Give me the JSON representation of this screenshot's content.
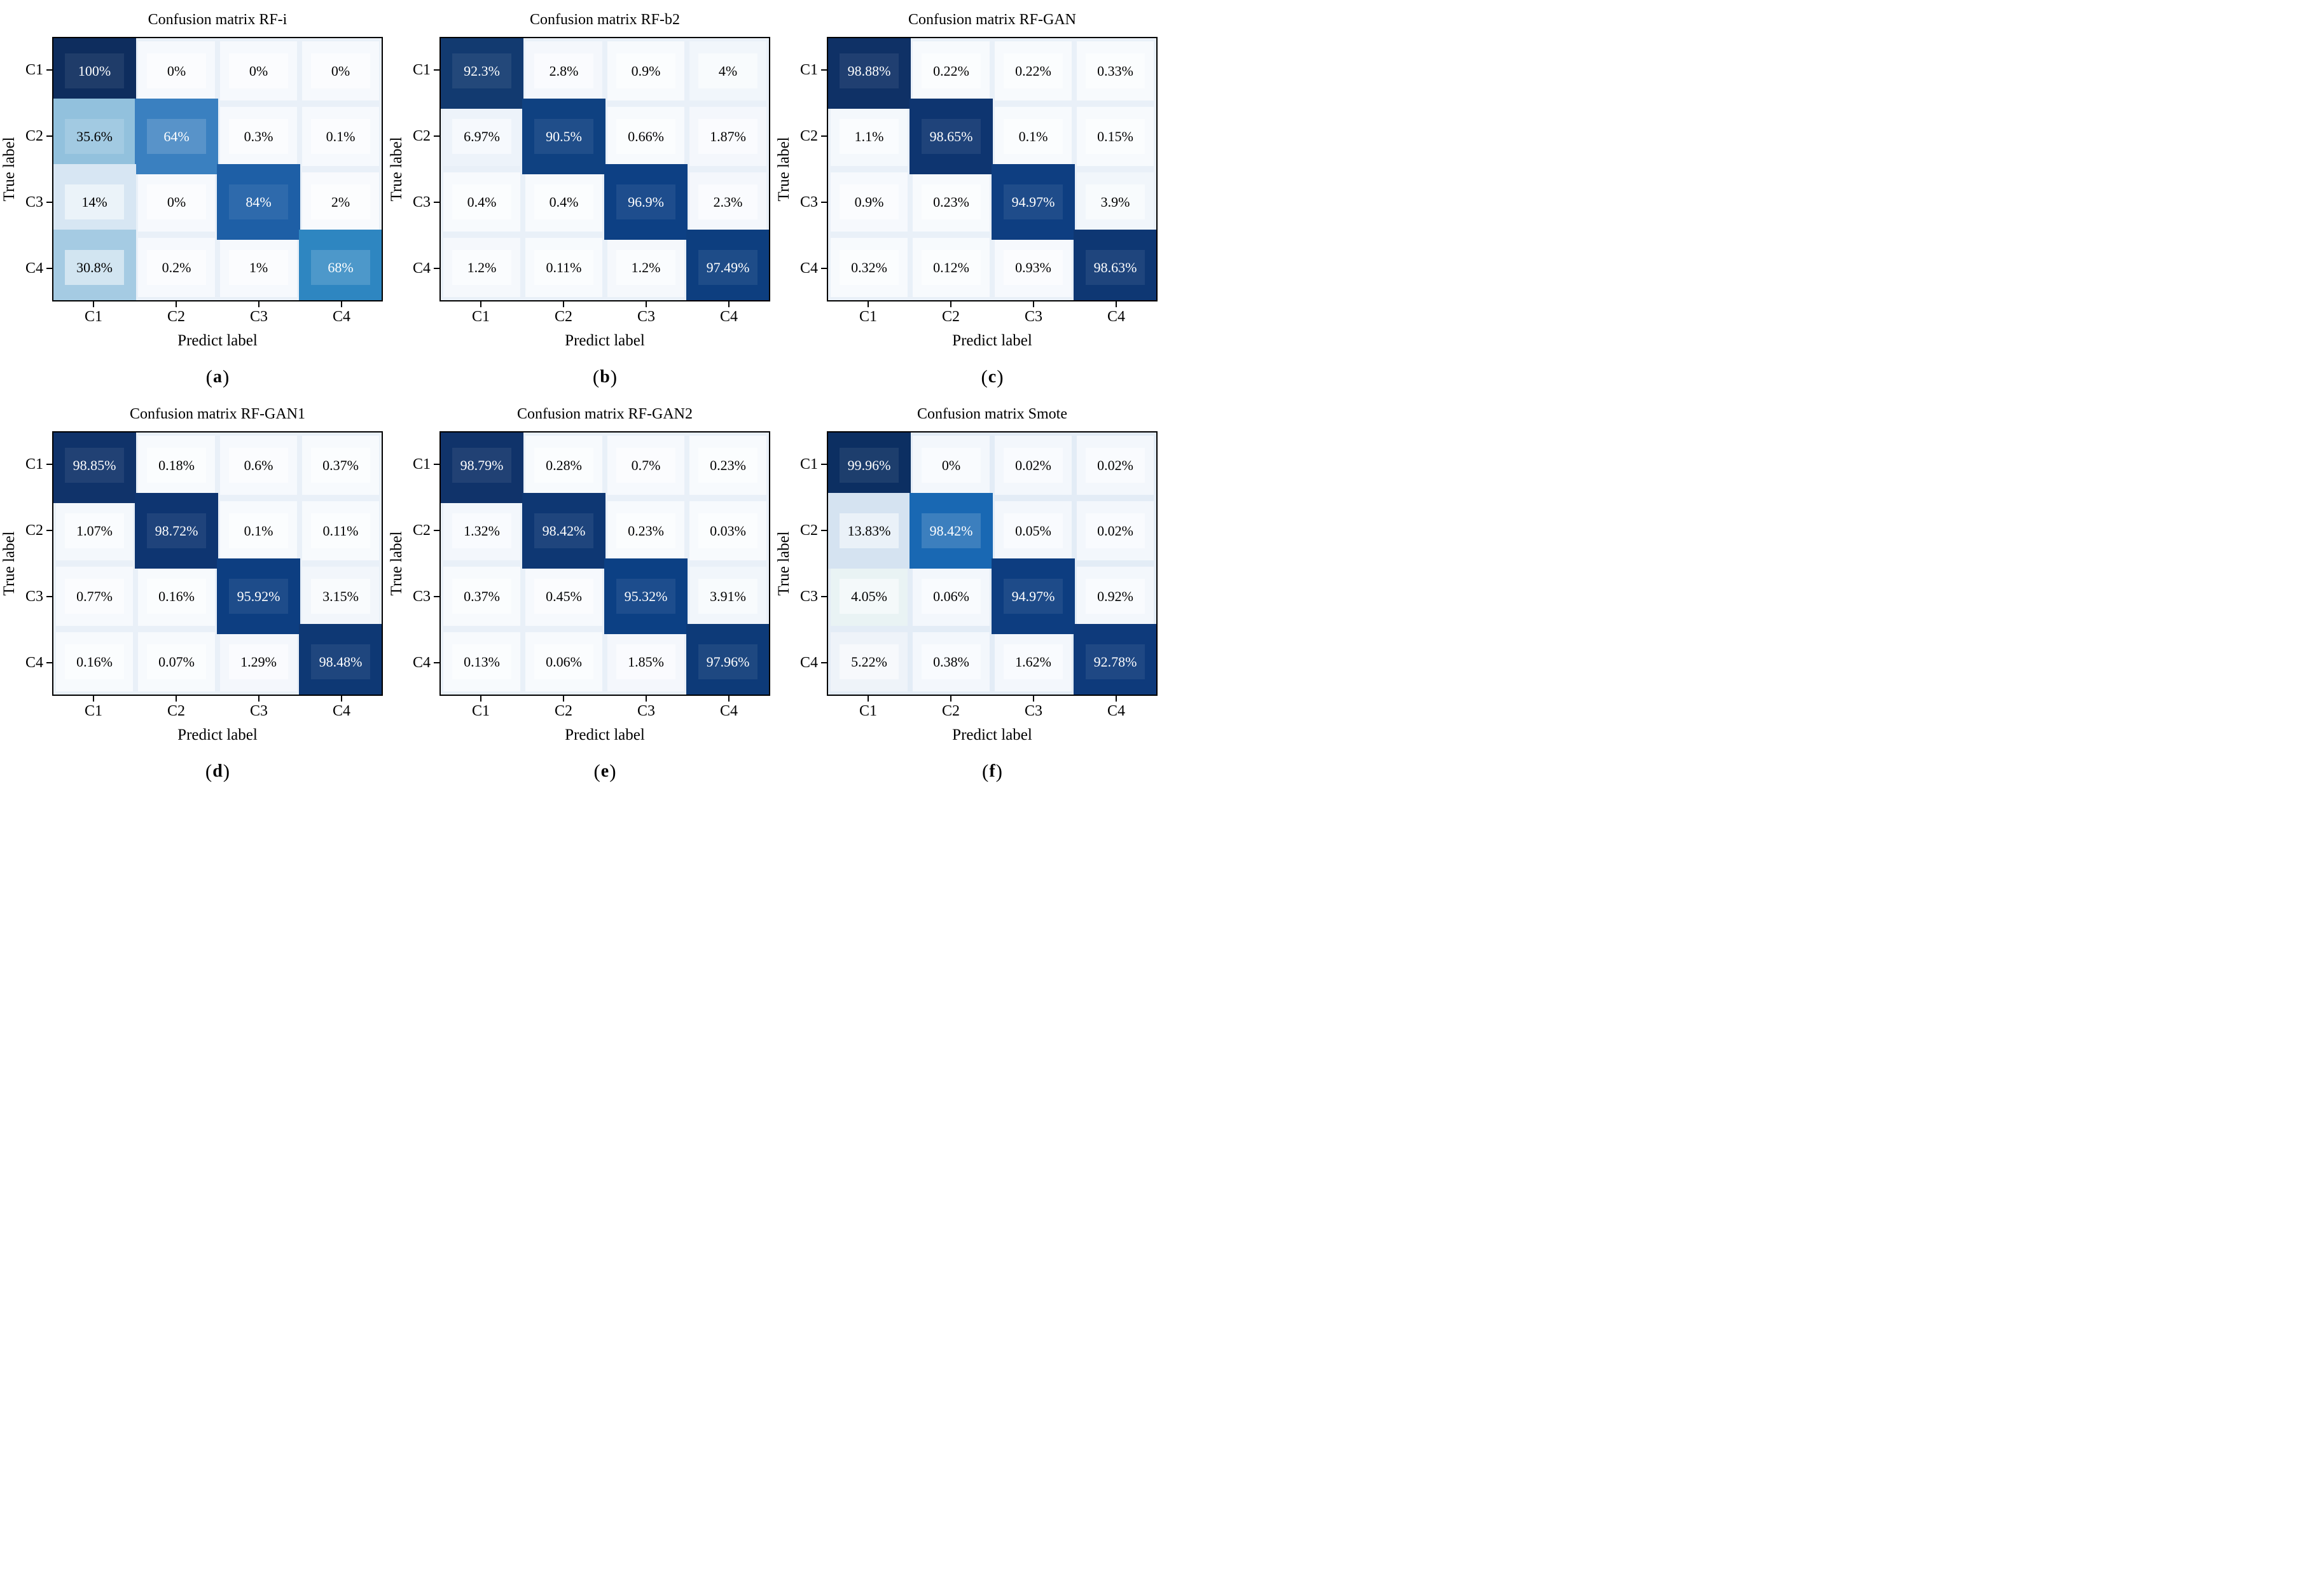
{
  "figure": {
    "ylabel": "True label",
    "xlabel": "Predict label",
    "classes": [
      "C1",
      "C2",
      "C3",
      "C4"
    ],
    "caption_open": "(",
    "caption_close": ")"
  },
  "style": {
    "page_bg": "#ffffff",
    "plot_border": "#000000",
    "default_plot_bg": "#e9f0f8",
    "dark_text": "#000000",
    "light_text": "#ffffff",
    "accent_navy": "#0e3570"
  },
  "panels": [
    {
      "caption": "a",
      "title": "Confusion matrix RF-i",
      "cells": [
        [
          "100%",
          "0%",
          "0%",
          "0%"
        ],
        [
          "35.6%",
          "64%",
          "0.3%",
          "0.1%"
        ],
        [
          "14%",
          "0%",
          "84%",
          "2%"
        ],
        [
          "30.8%",
          "0.2%",
          "1%",
          "68%"
        ]
      ],
      "colors": [
        [
          "#0e2d5e",
          "#f6f9fd",
          "#f6f9fd",
          "#f6f9fd"
        ],
        [
          "#92c1dd",
          "#3a80c0",
          "#f6f9fd",
          "#f6f9fd"
        ],
        [
          "#d7e6f3",
          "#f6f9fd",
          "#1e5fa6",
          "#f8fafd"
        ],
        [
          "#a5cbe3",
          "#f6f9fd",
          "#f6f9fd",
          "#2e86c1"
        ]
      ]
    },
    {
      "caption": "b",
      "title": "Confusion matrix RF-b2",
      "cells": [
        [
          "92.3%",
          "2.8%",
          "0.9%",
          "4%"
        ],
        [
          "6.97%",
          "90.5%",
          "0.66%",
          "1.87%"
        ],
        [
          "0.4%",
          "0.4%",
          "96.9%",
          "2.3%"
        ],
        [
          "1.2%",
          "0.11%",
          "1.2%",
          "97.49%"
        ]
      ],
      "colors": [
        [
          "#123a70",
          "#f4f7fc",
          "#f7fafd",
          "#f1f6fb"
        ],
        [
          "#edf3fa",
          "#0f4181",
          "#f7fafd",
          "#f4f7fc"
        ],
        [
          "#f7fafd",
          "#f7fafd",
          "#0d4084",
          "#f4f7fc"
        ],
        [
          "#f5f8fc",
          "#f7fafd",
          "#f5f8fc",
          "#0d3e7f"
        ]
      ]
    },
    {
      "caption": "c",
      "title": "Confusion matrix RF-GAN",
      "cells": [
        [
          "98.88%",
          "0.22%",
          "0.22%",
          "0.33%"
        ],
        [
          "1.1%",
          "98.65%",
          "0.1%",
          "0.15%"
        ],
        [
          "0.9%",
          "0.23%",
          "94.97%",
          "3.9%"
        ],
        [
          "0.32%",
          "0.12%",
          "0.93%",
          "98.63%"
        ]
      ],
      "colors": [
        [
          "#0f3166",
          "#f7fafd",
          "#f7fafd",
          "#f7fafd"
        ],
        [
          "#f4f8fc",
          "#0e3570",
          "#f7fafd",
          "#f7fafd"
        ],
        [
          "#f6f9fd",
          "#f7fafd",
          "#0e3e81",
          "#f1f6fb"
        ],
        [
          "#f7fafd",
          "#f7fafd",
          "#f6f9fd",
          "#0e3773"
        ]
      ]
    },
    {
      "caption": "d",
      "title": "Confusion matrix RF-GAN1",
      "cells": [
        [
          "98.85%",
          "0.18%",
          "0.6%",
          "0.37%"
        ],
        [
          "1.07%",
          "98.72%",
          "0.1%",
          "0.11%"
        ],
        [
          "0.77%",
          "0.16%",
          "95.92%",
          "3.15%"
        ],
        [
          "0.16%",
          "0.07%",
          "1.29%",
          "98.48%"
        ]
      ],
      "colors": [
        [
          "#10336a",
          "#f7fafd",
          "#f6f9fd",
          "#f7fafd"
        ],
        [
          "#f4f8fc",
          "#0e3571",
          "#f7fafd",
          "#f7fafd"
        ],
        [
          "#f6f9fd",
          "#f7fafd",
          "#0d3e81",
          "#f2f6fb"
        ],
        [
          "#f7fafd",
          "#f7fafd",
          "#f4f7fc",
          "#0e3874"
        ]
      ]
    },
    {
      "caption": "e",
      "title": "Confusion matrix RF-GAN2",
      "cells": [
        [
          "98.79%",
          "0.28%",
          "0.7%",
          "0.23%"
        ],
        [
          "1.32%",
          "98.42%",
          "0.23%",
          "0.03%"
        ],
        [
          "0.37%",
          "0.45%",
          "95.32%",
          "3.91%"
        ],
        [
          "0.13%",
          "0.06%",
          "1.85%",
          "97.96%"
        ]
      ],
      "colors": [
        [
          "#10336a",
          "#f7fafd",
          "#f6f9fd",
          "#f7fafd"
        ],
        [
          "#f3f7fc",
          "#0e3773",
          "#f7fafd",
          "#f7fafd"
        ],
        [
          "#f7fafd",
          "#f6f9fd",
          "#0c4084",
          "#f1f6fb"
        ],
        [
          "#f7fafd",
          "#f7fafd",
          "#f4f7fc",
          "#0d3a78"
        ]
      ]
    },
    {
      "caption": "f",
      "title": "Confusion matrix Smote",
      "plot_bg": "#e3ecf6",
      "cells": [
        [
          "99.96%",
          "0%",
          "0.02%",
          "0.02%"
        ],
        [
          "13.83%",
          "98.42%",
          "0.05%",
          "0.02%"
        ],
        [
          "4.05%",
          "0.06%",
          "94.97%",
          "0.92%"
        ],
        [
          "5.22%",
          "0.38%",
          "1.62%",
          "92.78%"
        ]
      ],
      "colors": [
        [
          "#0c2f62",
          "#f3f7fc",
          "#f3f7fc",
          "#f3f7fc"
        ],
        [
          "#d5e3f1",
          "#1968b3",
          "#f3f7fc",
          "#f3f7fc"
        ],
        [
          "#e9f3f4",
          "#f3f7fc",
          "#0d3d80",
          "#f3f7fc"
        ],
        [
          "#eef3f9",
          "#f3f7fc",
          "#f3f7fc",
          "#0e3a7b"
        ]
      ]
    }
  ],
  "chart_data": [
    {
      "type": "heatmap",
      "title": "Confusion matrix RF-i",
      "xlabel": "Predict label",
      "ylabel": "True label",
      "x_categories": [
        "C1",
        "C2",
        "C3",
        "C4"
      ],
      "y_categories": [
        "C1",
        "C2",
        "C3",
        "C4"
      ],
      "unit": "%",
      "colormap": "Blues",
      "values": [
        [
          100,
          0,
          0,
          0
        ],
        [
          35.6,
          64,
          0.3,
          0.1
        ],
        [
          14,
          0,
          84,
          2
        ],
        [
          30.8,
          0.2,
          1,
          68
        ]
      ]
    },
    {
      "type": "heatmap",
      "title": "Confusion matrix RF-b2",
      "xlabel": "Predict label",
      "ylabel": "True label",
      "x_categories": [
        "C1",
        "C2",
        "C3",
        "C4"
      ],
      "y_categories": [
        "C1",
        "C2",
        "C3",
        "C4"
      ],
      "unit": "%",
      "colormap": "Blues",
      "values": [
        [
          92.3,
          2.8,
          0.9,
          4
        ],
        [
          6.97,
          90.5,
          0.66,
          1.87
        ],
        [
          0.4,
          0.4,
          96.9,
          2.3
        ],
        [
          1.2,
          0.11,
          1.2,
          97.49
        ]
      ]
    },
    {
      "type": "heatmap",
      "title": "Confusion matrix RF-GAN",
      "xlabel": "Predict label",
      "ylabel": "True label",
      "x_categories": [
        "C1",
        "C2",
        "C3",
        "C4"
      ],
      "y_categories": [
        "C1",
        "C2",
        "C3",
        "C4"
      ],
      "unit": "%",
      "colormap": "Blues",
      "values": [
        [
          98.88,
          0.22,
          0.22,
          0.33
        ],
        [
          1.1,
          98.65,
          0.1,
          0.15
        ],
        [
          0.9,
          0.23,
          94.97,
          3.9
        ],
        [
          0.32,
          0.12,
          0.93,
          98.63
        ]
      ]
    },
    {
      "type": "heatmap",
      "title": "Confusion matrix RF-GAN1",
      "xlabel": "Predict label",
      "ylabel": "True label",
      "x_categories": [
        "C1",
        "C2",
        "C3",
        "C4"
      ],
      "y_categories": [
        "C1",
        "C2",
        "C3",
        "C4"
      ],
      "unit": "%",
      "colormap": "Blues",
      "values": [
        [
          98.85,
          0.18,
          0.6,
          0.37
        ],
        [
          1.07,
          98.72,
          0.1,
          0.11
        ],
        [
          0.77,
          0.16,
          95.92,
          3.15
        ],
        [
          0.16,
          0.07,
          1.29,
          98.48
        ]
      ]
    },
    {
      "type": "heatmap",
      "title": "Confusion matrix RF-GAN2",
      "xlabel": "Predict label",
      "ylabel": "True label",
      "x_categories": [
        "C1",
        "C2",
        "C3",
        "C4"
      ],
      "y_categories": [
        "C1",
        "C2",
        "C3",
        "C4"
      ],
      "unit": "%",
      "colormap": "Blues",
      "values": [
        [
          98.79,
          0.28,
          0.7,
          0.23
        ],
        [
          1.32,
          98.42,
          0.23,
          0.03
        ],
        [
          0.37,
          0.45,
          95.32,
          3.91
        ],
        [
          0.13,
          0.06,
          1.85,
          97.96
        ]
      ]
    },
    {
      "type": "heatmap",
      "title": "Confusion matrix Smote",
      "xlabel": "Predict label",
      "ylabel": "True label",
      "x_categories": [
        "C1",
        "C2",
        "C3",
        "C4"
      ],
      "y_categories": [
        "C1",
        "C2",
        "C3",
        "C4"
      ],
      "unit": "%",
      "colormap": "Blues",
      "values": [
        [
          99.96,
          0,
          0.02,
          0.02
        ],
        [
          13.83,
          98.42,
          0.05,
          0.02
        ],
        [
          4.05,
          0.06,
          94.97,
          0.92
        ],
        [
          5.22,
          0.38,
          1.62,
          92.78
        ]
      ]
    }
  ]
}
